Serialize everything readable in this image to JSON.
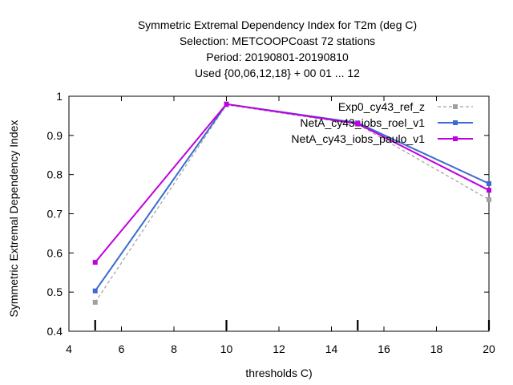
{
  "chart_data": {
    "type": "line",
    "title_lines": [
      "Symmetric Extremal Dependency Index  for T2m (deg C)",
      "Selection: METCOOPCoast     72 stations",
      "Period: 20190801-20190810",
      "Used {00,06,12,18} + 00 01 ... 12"
    ],
    "xlabel": "thresholds C)",
    "ylabel": "Symmetric Extremal Dependency Index",
    "xlim": [
      4,
      20
    ],
    "ylim": [
      0.4,
      1
    ],
    "xticks": [
      4,
      6,
      8,
      10,
      12,
      14,
      16,
      18,
      20
    ],
    "yticks": [
      0.4,
      0.5,
      0.6,
      0.7,
      0.8,
      0.9,
      1
    ],
    "ytick_labels": [
      "0.4",
      "0.5",
      "0.6",
      "0.7",
      "0.8",
      "0.9",
      "1"
    ],
    "legend_position": "top-right",
    "threshold_markers": [
      5,
      10,
      15,
      20
    ],
    "x": [
      5,
      10,
      15,
      20
    ],
    "series": [
      {
        "name": "Exp0_cy43_ref_z",
        "color": "#a0a0a0",
        "dashed": true,
        "values": [
          0.474,
          0.978,
          0.928,
          0.736
        ]
      },
      {
        "name": "NetA_cy43_iobs_roel_v1",
        "color": "#3a6bd0",
        "dashed": false,
        "values": [
          0.503,
          0.98,
          0.932,
          0.777
        ]
      },
      {
        "name": "NetA_cy43_iobs_paulo_v1",
        "color": "#c000e0",
        "dashed": false,
        "values": [
          0.576,
          0.98,
          0.93,
          0.76
        ]
      }
    ]
  }
}
